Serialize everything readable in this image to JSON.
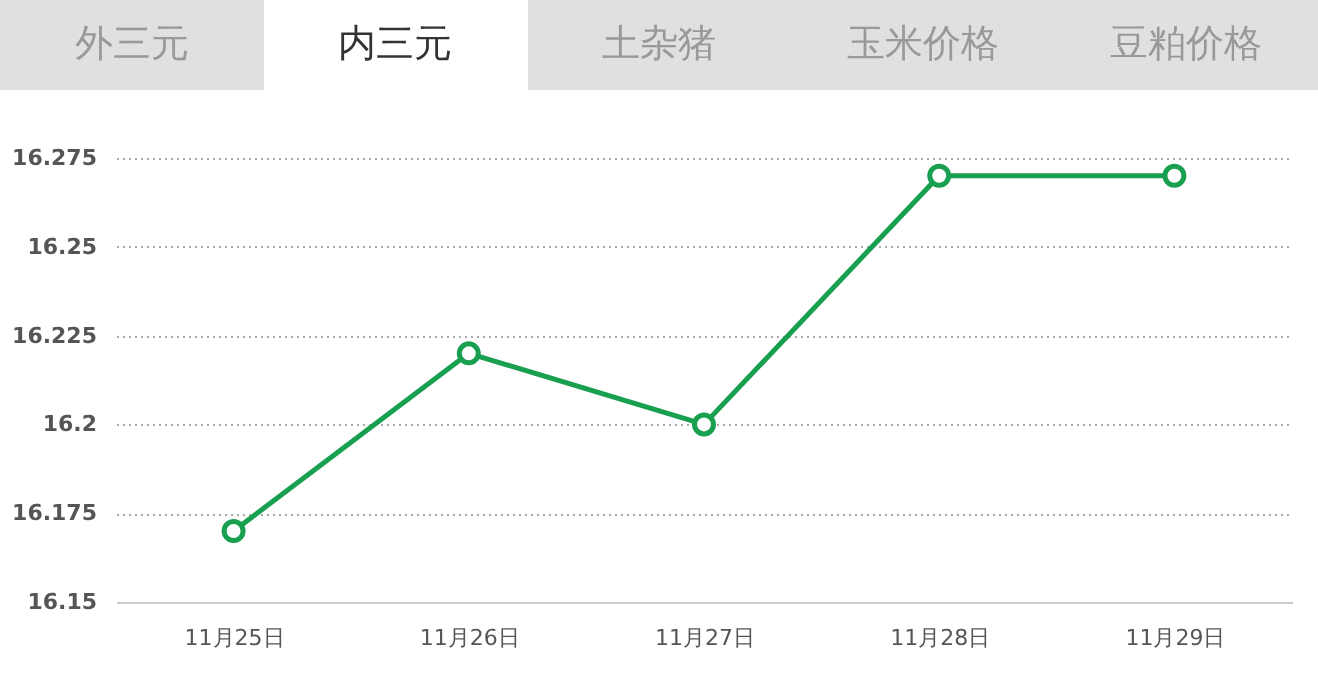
{
  "chart_data": {
    "type": "line",
    "annotations": [
      "外三元",
      "内三元",
      "土杂猪",
      "玉米价格",
      "豆粕价格"
    ],
    "categories": [
      "11月25日",
      "11月26日",
      "11月27日",
      "11月28日",
      "11月29日"
    ],
    "series": [
      {
        "color": "#18a050",
        "values": [
          16.17,
          16.22,
          16.2,
          16.27,
          16.27
        ]
      }
    ],
    "ylim": [
      16.15,
      16.275
    ],
    "yticks": [
      16.15,
      16.175,
      16.2,
      16.225,
      16.25,
      16.275
    ],
    "grid": "y",
    "marker": "circle"
  }
}
